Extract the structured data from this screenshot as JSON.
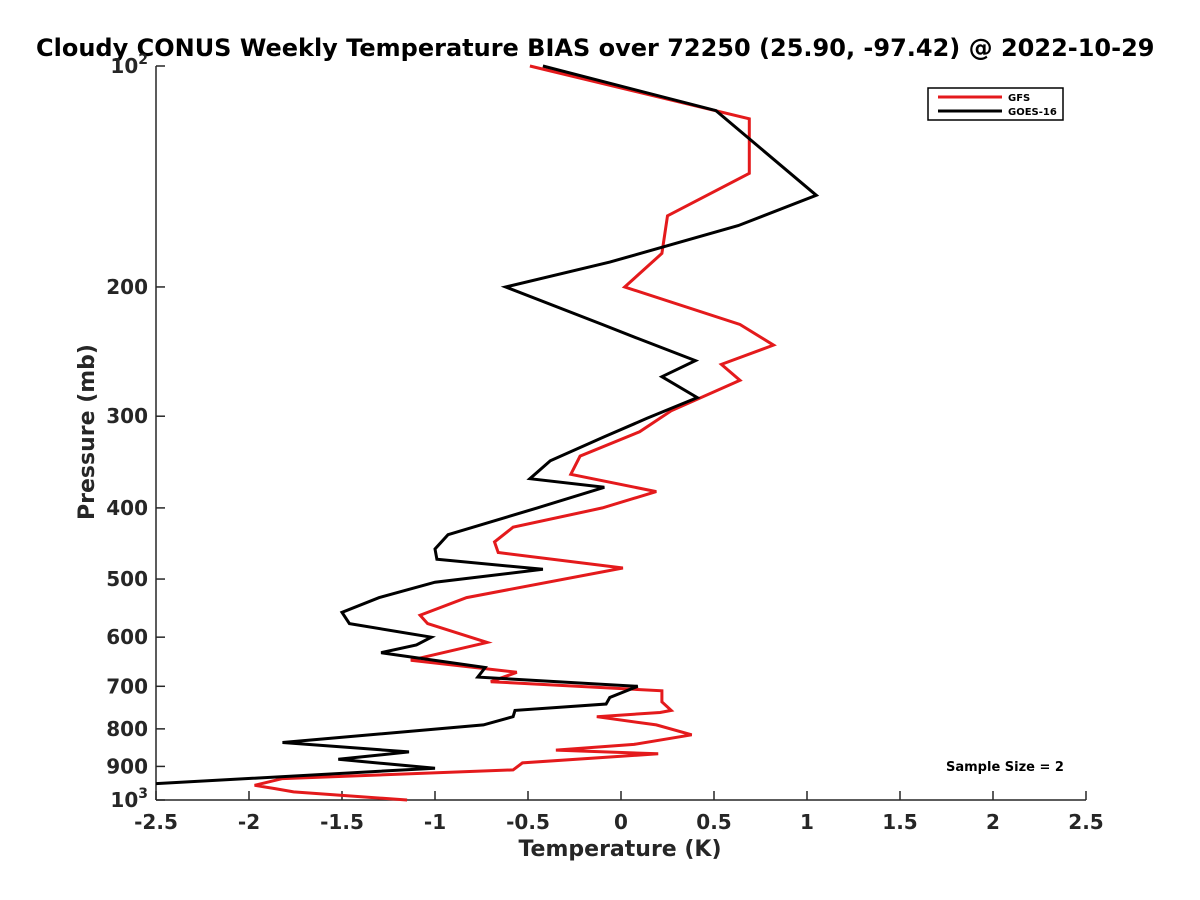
{
  "chart_data": {
    "type": "line",
    "title": "Cloudy CONUS Weekly Temperature BIAS over 72250 (25.90, -97.42) @ 2022-10-29",
    "xlabel": "Temperature (K)",
    "ylabel": "Pressure (mb)",
    "xlim": [
      -2.5,
      2.5
    ],
    "ylim": [
      100,
      1000
    ],
    "y_scale": "log",
    "y_reversed": true,
    "x_ticks": [
      -2.5,
      -2,
      -1.5,
      -1,
      -0.5,
      0,
      0.5,
      1,
      1.5,
      2,
      2.5
    ],
    "x_tick_labels": [
      "-2.5",
      "-2",
      "-1.5",
      "-1",
      "-0.5",
      "0",
      "0.5",
      "1",
      "1.5",
      "2",
      "2.5"
    ],
    "y_ticks": [
      {
        "value": 100,
        "label": "10",
        "sup": "2"
      },
      {
        "value": 200,
        "label": "200",
        "sup": ""
      },
      {
        "value": 300,
        "label": "300",
        "sup": ""
      },
      {
        "value": 400,
        "label": "400",
        "sup": ""
      },
      {
        "value": 500,
        "label": "500",
        "sup": ""
      },
      {
        "value": 600,
        "label": "600",
        "sup": ""
      },
      {
        "value": 700,
        "label": "700",
        "sup": ""
      },
      {
        "value": 800,
        "label": "800",
        "sup": ""
      },
      {
        "value": 900,
        "label": "900",
        "sup": ""
      },
      {
        "value": 1000,
        "label": "10",
        "sup": "3"
      }
    ],
    "grid": false,
    "legend_position": "top-right",
    "annotation": "Sample Size = 2",
    "series": [
      {
        "name": "GFS",
        "color": "#e41a1c",
        "points": [
          [
            -0.49,
            100
          ],
          [
            0.69,
            118
          ],
          [
            0.69,
            140
          ],
          [
            0.25,
            160
          ],
          [
            0.22,
            180
          ],
          [
            0.02,
            200
          ],
          [
            0.64,
            225
          ],
          [
            0.82,
            240
          ],
          [
            0.54,
            255
          ],
          [
            0.64,
            268
          ],
          [
            0.27,
            295
          ],
          [
            0.1,
            315
          ],
          [
            -0.22,
            340
          ],
          [
            -0.27,
            360
          ],
          [
            0.19,
            380
          ],
          [
            -0.1,
            400
          ],
          [
            -0.58,
            425
          ],
          [
            -0.68,
            445
          ],
          [
            -0.66,
            460
          ],
          [
            0.01,
            483
          ],
          [
            -0.83,
            530
          ],
          [
            -1.08,
            560
          ],
          [
            -1.04,
            575
          ],
          [
            -0.72,
            610
          ],
          [
            -1.13,
            645
          ],
          [
            -0.56,
            670
          ],
          [
            -0.7,
            690
          ],
          [
            0.22,
            710
          ],
          [
            0.22,
            735
          ],
          [
            0.27,
            755
          ],
          [
            0.21,
            760
          ],
          [
            -0.13,
            770
          ],
          [
            0.19,
            790
          ],
          [
            0.38,
            815
          ],
          [
            0.07,
            840
          ],
          [
            -0.35,
            855
          ],
          [
            0.2,
            865
          ],
          [
            -0.53,
            890
          ],
          [
            -0.58,
            910
          ],
          [
            -1.82,
            935
          ],
          [
            -1.97,
            955
          ],
          [
            -1.86,
            965
          ],
          [
            -1.76,
            975
          ],
          [
            -1.15,
            1000
          ]
        ]
      },
      {
        "name": "GOES-16",
        "color": "#000000",
        "points": [
          [
            -0.42,
            100
          ],
          [
            0.51,
            115
          ],
          [
            1.05,
            150
          ],
          [
            0.63,
            165
          ],
          [
            -0.06,
            185
          ],
          [
            -0.62,
            200
          ],
          [
            -0.1,
            225
          ],
          [
            0.09,
            235
          ],
          [
            0.4,
            252
          ],
          [
            0.22,
            265
          ],
          [
            0.41,
            283
          ],
          [
            0.14,
            302
          ],
          [
            -0.09,
            320
          ],
          [
            -0.38,
            345
          ],
          [
            -0.49,
            365
          ],
          [
            -0.09,
            375
          ],
          [
            -0.45,
            400
          ],
          [
            -0.93,
            435
          ],
          [
            -1.0,
            455
          ],
          [
            -0.99,
            470
          ],
          [
            -0.42,
            485
          ],
          [
            -1.0,
            505
          ],
          [
            -1.3,
            530
          ],
          [
            -1.5,
            555
          ],
          [
            -1.46,
            575
          ],
          [
            -1.02,
            600
          ],
          [
            -1.1,
            615
          ],
          [
            -1.29,
            630
          ],
          [
            -0.73,
            660
          ],
          [
            -0.77,
            680
          ],
          [
            0.09,
            700
          ],
          [
            -0.06,
            725
          ],
          [
            -0.08,
            740
          ],
          [
            -0.57,
            755
          ],
          [
            -0.58,
            770
          ],
          [
            -0.74,
            790
          ],
          [
            -1.82,
            835
          ],
          [
            -1.14,
            860
          ],
          [
            -1.52,
            880
          ],
          [
            -1.0,
            905
          ],
          [
            -2.5,
            950
          ]
        ]
      }
    ]
  }
}
